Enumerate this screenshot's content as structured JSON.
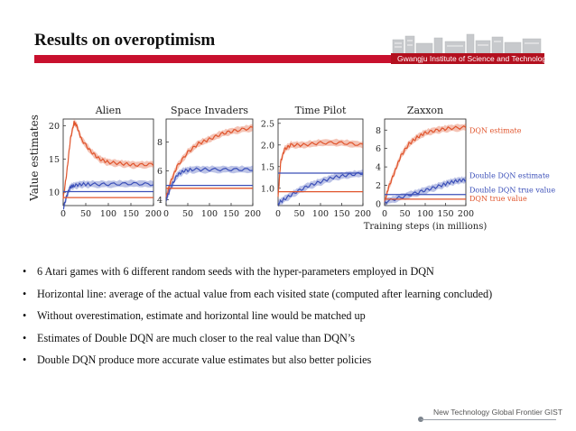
{
  "title": "Results on overoptimism",
  "institute": "Gwangju Institute of  Science and Technology",
  "footer": "New Technology Global Frontier GIST",
  "bullets": [
    "6 Atari games with 6 different random seeds with the hyper-parameters employed in DQN",
    "Horizontal line: average of the actual value from each visited state (computed after learning concluded)",
    "Without overestimation, estimate and horizontal line would be matched up",
    "Estimates of Double DQN are much closer to the real value than DQN’s",
    "Double DQN produce more accurate value estimates but also better policies"
  ],
  "bullet_symbol": "•",
  "colors": {
    "accent": "#c8102e",
    "dqn": "#e0542c",
    "double_dqn": "#3b4fb8"
  },
  "chart_data": [
    {
      "type": "line",
      "title": "Alien",
      "ylabel": "Value estimates",
      "x_ticks": [
        "0",
        "50",
        "100",
        "150",
        "200"
      ],
      "y_ticks": [
        "10",
        "15",
        "20"
      ],
      "ylim": [
        8,
        21
      ],
      "xlim": [
        0,
        200
      ],
      "series": [
        {
          "color": "#e0542c",
          "x": [
            0,
            8,
            16,
            24,
            30,
            40,
            60,
            80,
            100,
            130,
            160,
            200
          ],
          "y": [
            9,
            13,
            18,
            20.5,
            20,
            18,
            16.2,
            15,
            14.5,
            14.3,
            14.1,
            14.2
          ]
        },
        {
          "color": "#3b4fb8",
          "x": [
            0,
            8,
            16,
            24,
            40,
            60,
            100,
            150,
            200
          ],
          "y": [
            7.5,
            9.5,
            10.8,
            11,
            11.2,
            11.2,
            11.2,
            11.3,
            11.2
          ]
        },
        {
          "color": "#e0542c",
          "x": [
            0,
            200
          ],
          "y": [
            9.2,
            9.2
          ]
        },
        {
          "color": "#3b4fb8",
          "x": [
            0,
            200
          ],
          "y": [
            10.1,
            10.1
          ]
        }
      ]
    },
    {
      "type": "line",
      "title": "Space Invaders",
      "x_ticks": [
        "0",
        "50",
        "100",
        "150",
        "200"
      ],
      "y_ticks": [
        "4",
        "6",
        "8"
      ],
      "ylim": [
        3.6,
        9.6
      ],
      "xlim": [
        0,
        200
      ],
      "series": [
        {
          "color": "#e0542c",
          "x": [
            0,
            10,
            25,
            50,
            75,
            100,
            130,
            160,
            200
          ],
          "y": [
            4.2,
            5.2,
            6.3,
            7.3,
            7.9,
            8.2,
            8.6,
            8.8,
            9.0
          ]
        },
        {
          "color": "#3b4fb8",
          "x": [
            0,
            10,
            25,
            40,
            60,
            100,
            150,
            200
          ],
          "y": [
            4.0,
            4.8,
            5.7,
            6.0,
            6.1,
            6.1,
            6.1,
            6.1
          ]
        },
        {
          "color": "#e0542c",
          "x": [
            0,
            200
          ],
          "y": [
            4.8,
            4.8
          ]
        },
        {
          "color": "#3b4fb8",
          "x": [
            0,
            200
          ],
          "y": [
            5.0,
            5.0
          ]
        }
      ]
    },
    {
      "type": "line",
      "title": "Time Pilot",
      "x_ticks": [
        "0",
        "50",
        "100",
        "150",
        "200"
      ],
      "y_ticks": [
        "1.0",
        "1.5",
        "2.0",
        "2.5"
      ],
      "ylim": [
        0.6,
        2.6
      ],
      "xlim": [
        0,
        200
      ],
      "series": [
        {
          "color": "#e0542c",
          "x": [
            0,
            6,
            15,
            30,
            60,
            100,
            150,
            200
          ],
          "y": [
            0.8,
            1.6,
            1.9,
            2.0,
            2.0,
            2.05,
            2.05,
            2.0
          ]
        },
        {
          "color": "#3b4fb8",
          "x": [
            0,
            15,
            40,
            70,
            100,
            130,
            160,
            200
          ],
          "y": [
            0.65,
            0.75,
            0.9,
            1.05,
            1.15,
            1.25,
            1.3,
            1.35
          ]
        },
        {
          "color": "#3b4fb8",
          "x": [
            0,
            200
          ],
          "y": [
            1.35,
            1.35
          ]
        },
        {
          "color": "#e0542c",
          "x": [
            0,
            200
          ],
          "y": [
            0.92,
            0.92
          ]
        }
      ]
    },
    {
      "type": "line",
      "title": "Zaxxon",
      "xlabel": "Training steps (in millions)",
      "x_ticks": [
        "0",
        "50",
        "100",
        "150",
        "200"
      ],
      "y_ticks": [
        "0",
        "2",
        "4",
        "6",
        "8"
      ],
      "ylim": [
        -0.2,
        9.2
      ],
      "xlim": [
        0,
        200
      ],
      "series": [
        {
          "name": "DQN estimate",
          "color": "#e0542c",
          "x": [
            0,
            10,
            25,
            40,
            60,
            80,
            100,
            130,
            160,
            200
          ],
          "y": [
            0.2,
            1.8,
            3.5,
            5.2,
            6.5,
            7.2,
            7.7,
            8.0,
            8.2,
            8.3
          ]
        },
        {
          "name": "Double DQN estimate",
          "color": "#3b4fb8",
          "x": [
            0,
            40,
            80,
            110,
            140,
            160,
            180,
            200
          ],
          "y": [
            0.2,
            0.7,
            1.2,
            1.6,
            2.0,
            2.3,
            2.5,
            2.6
          ]
        },
        {
          "name": "Double DQN true value",
          "color": "#3b4fb8",
          "x": [
            0,
            200
          ],
          "y": [
            1.0,
            1.0
          ]
        },
        {
          "name": "DQN true value",
          "color": "#e0542c",
          "x": [
            0,
            200
          ],
          "y": [
            0.5,
            0.5
          ]
        }
      ]
    }
  ]
}
